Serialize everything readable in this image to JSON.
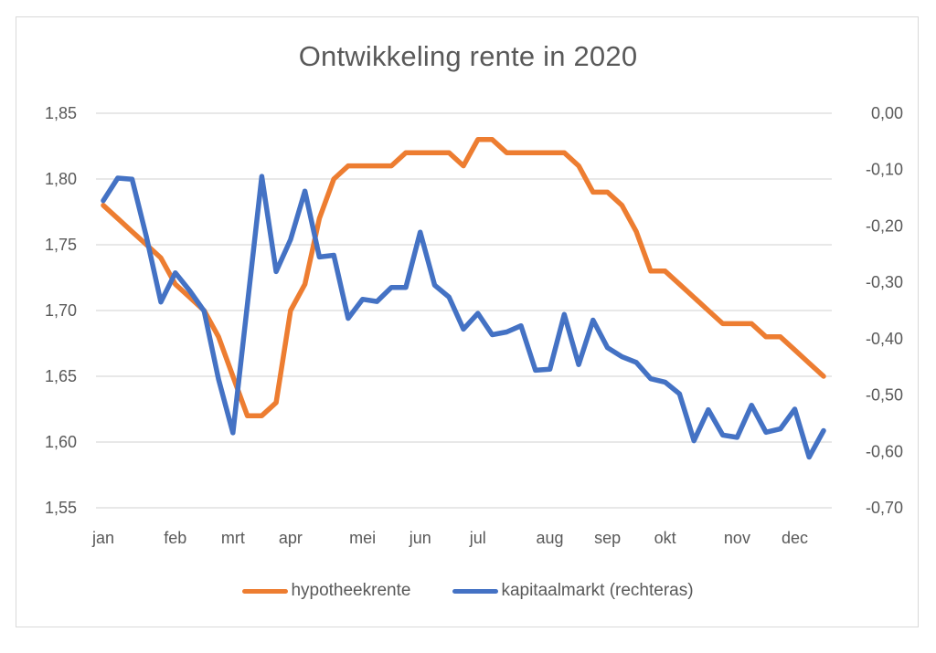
{
  "chart_data": {
    "type": "line",
    "title": "Ontwikkeling rente in 2020",
    "xlabel": "",
    "ylabel": "",
    "y_left": {
      "ticks": [
        "1,85",
        "1,80",
        "1,75",
        "1,70",
        "1,65",
        "1,60",
        "1,55"
      ],
      "min": 1.55,
      "max": 1.85
    },
    "y_right": {
      "ticks": [
        "0,00",
        "-0,10",
        "-0,20",
        "-0,30",
        "-0,40",
        "-0,50",
        "-0,60",
        "-0,70"
      ],
      "min": -0.7,
      "max": 0.0
    },
    "x_labels": [
      {
        "label": "jan",
        "index": 0
      },
      {
        "label": "feb",
        "index": 5
      },
      {
        "label": "mrt",
        "index": 9
      },
      {
        "label": "apr",
        "index": 13
      },
      {
        "label": "mei",
        "index": 18
      },
      {
        "label": "jun",
        "index": 22
      },
      {
        "label": "jul",
        "index": 26
      },
      {
        "label": "aug",
        "index": 31
      },
      {
        "label": "sep",
        "index": 35
      },
      {
        "label": "okt",
        "index": 39
      },
      {
        "label": "nov",
        "index": 44
      },
      {
        "label": "dec",
        "index": 48
      }
    ],
    "grid": true,
    "legend_position": "bottom",
    "series": [
      {
        "name": "hypotheekrente",
        "axis": "left",
        "color": "#ED7D31",
        "values": [
          1.78,
          1.77,
          1.76,
          1.75,
          1.74,
          1.72,
          1.71,
          1.7,
          1.68,
          1.65,
          1.62,
          1.62,
          1.63,
          1.7,
          1.72,
          1.77,
          1.8,
          1.81,
          1.81,
          1.81,
          1.81,
          1.82,
          1.82,
          1.82,
          1.82,
          1.81,
          1.83,
          1.83,
          1.82,
          1.82,
          1.82,
          1.82,
          1.82,
          1.81,
          1.79,
          1.79,
          1.78,
          1.76,
          1.73,
          1.73,
          1.72,
          1.71,
          1.7,
          1.69,
          1.69,
          1.69,
          1.68,
          1.68,
          1.67,
          1.66,
          1.65
        ]
      },
      {
        "name": "kapitaalmarkt (rechteras)",
        "axis": "right",
        "color": "#4472C4",
        "values": [
          -0.155,
          -0.115,
          -0.117,
          -0.22,
          -0.335,
          -0.283,
          -0.315,
          -0.351,
          -0.472,
          -0.567,
          -0.34,
          -0.112,
          -0.281,
          -0.224,
          -0.138,
          -0.255,
          -0.252,
          -0.364,
          -0.33,
          -0.334,
          -0.309,
          -0.309,
          -0.211,
          -0.305,
          -0.326,
          -0.383,
          -0.355,
          -0.393,
          -0.388,
          -0.377,
          -0.456,
          -0.454,
          -0.357,
          -0.446,
          -0.367,
          -0.416,
          -0.432,
          -0.442,
          -0.471,
          -0.477,
          -0.498,
          -0.581,
          -0.526,
          -0.571,
          -0.575,
          -0.518,
          -0.566,
          -0.56,
          -0.525,
          -0.61,
          -0.563
        ]
      }
    ]
  },
  "legend": {
    "items": [
      {
        "label": "hypotheekrente",
        "color": "#ED7D31"
      },
      {
        "label": "kapitaalmarkt (rechteras)",
        "color": "#4472C4"
      }
    ]
  }
}
